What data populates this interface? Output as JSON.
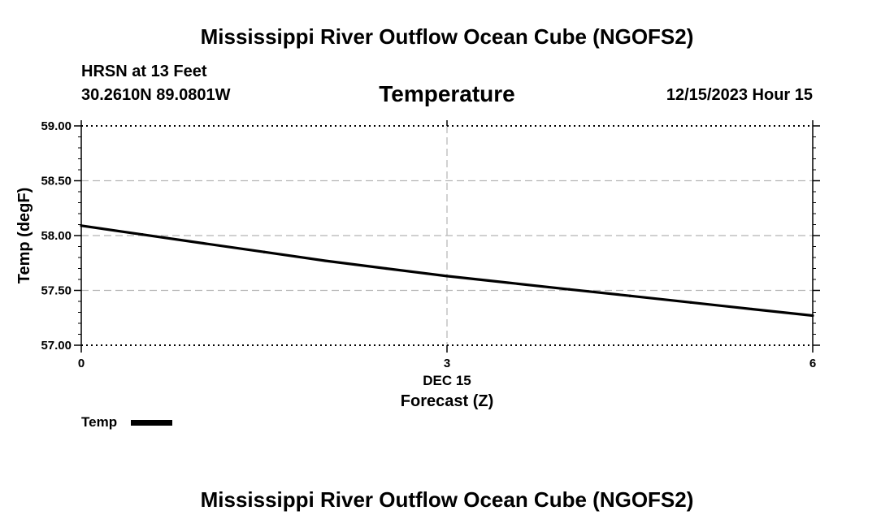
{
  "header": {
    "title": "Mississippi River Outflow Ocean Cube (NGOFS2)",
    "station": "HRSN at 13 Feet",
    "coordinates": "30.2610N  89.0801W",
    "panel_title": "Temperature",
    "datetime": "12/15/2023 Hour 15"
  },
  "footer": {
    "title": "Mississippi River Outflow Ocean Cube (NGOFS2)"
  },
  "chart_data": {
    "type": "line",
    "title": "Temperature",
    "xlabel": "Forecast (Z)",
    "ylabel": "Temp (degF)",
    "xlim": [
      0,
      6
    ],
    "ylim": [
      57.0,
      59.0
    ],
    "x_ticks": [
      0,
      3,
      6
    ],
    "x_tick_labels": [
      "0",
      "3",
      "6"
    ],
    "x_date_label": "DEC 15",
    "y_ticks": [
      57.0,
      57.5,
      58.0,
      58.5,
      59.0
    ],
    "y_tick_labels": [
      "57.00",
      "57.50",
      "58.00",
      "58.50",
      "59.00"
    ],
    "grid": true,
    "legend_position": "bottom-left",
    "series": [
      {
        "name": "Temp",
        "color": "#000000",
        "x": [
          0,
          0.5,
          1,
          1.5,
          2,
          2.5,
          3,
          3.5,
          4,
          4.5,
          5,
          5.5,
          6
        ],
        "y": [
          58.09,
          58.01,
          57.93,
          57.85,
          57.77,
          57.7,
          57.63,
          57.57,
          57.51,
          57.45,
          57.39,
          57.33,
          57.27
        ]
      }
    ]
  }
}
